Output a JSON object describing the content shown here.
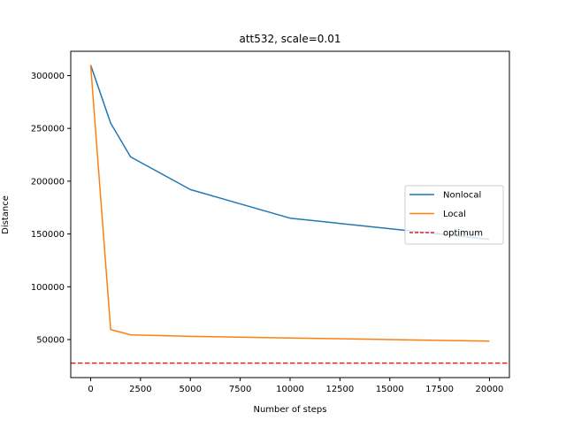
{
  "chart_data": {
    "type": "line",
    "title": "att532, scale=0.01",
    "xlabel": "Number of steps",
    "ylabel": "Distance",
    "xlim": [
      -1000,
      21000
    ],
    "ylim": [
      14000,
      323000
    ],
    "xticks": [
      0,
      2500,
      5000,
      7500,
      10000,
      12500,
      15000,
      17500,
      20000
    ],
    "yticks": [
      50000,
      100000,
      150000,
      200000,
      250000,
      300000
    ],
    "grid": false,
    "legend_position": "center-right",
    "series": [
      {
        "name": "Nonlocal",
        "color": "#1f77b4",
        "style": "solid",
        "x": [
          0,
          1000,
          2000,
          5000,
          10000,
          20000
        ],
        "y": [
          310000,
          255000,
          223000,
          192000,
          165000,
          145000
        ]
      },
      {
        "name": "Local",
        "color": "#ff7f0e",
        "style": "solid",
        "x": [
          0,
          1000,
          2000,
          5000,
          10000,
          20000
        ],
        "y": [
          310000,
          59500,
          54500,
          53000,
          51500,
          48500
        ]
      }
    ],
    "reference_lines": [
      {
        "name": "optimum",
        "color": "#d62728",
        "style": "dashed",
        "y": 27686
      }
    ]
  }
}
